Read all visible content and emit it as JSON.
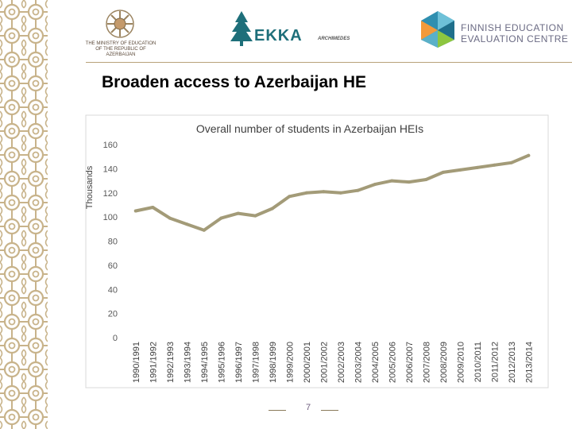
{
  "header": {
    "ministry_name": "THE MINISTRY OF EDUCATION OF THE REPUBLIC OF AZERBAIJAN",
    "ekka_name": "EKKA",
    "ekka_sub": "ARCHIMEDES",
    "finnish_line1": "FINNISH EDUCATION",
    "finnish_line2": "EVALUATION CENTRE"
  },
  "slide": {
    "title": "Broaden access to Azerbaijan HE",
    "page_number": "7"
  },
  "colors": {
    "line": "#a39b78",
    "accent_border": "#c8b38a"
  },
  "chart_data": {
    "type": "line",
    "title": "Overall number of students in Azerbaijan HEIs",
    "ylabel": "Thousands",
    "xlabel": "",
    "ylim": [
      0,
      160
    ],
    "yticks": [
      "0",
      "20",
      "40",
      "60",
      "80",
      "100",
      "120",
      "140",
      "160"
    ],
    "categories": [
      "1990/1991",
      "1991/1992",
      "1992/1993",
      "1993/1994",
      "1994/1995",
      "1995/1996",
      "1996/1997",
      "1997/1998",
      "1998/1999",
      "1999/2000",
      "2000/2001",
      "2001/2002",
      "2002/2003",
      "2003/2004",
      "2004/2005",
      "2005/2006",
      "2006/2007",
      "2007/2008",
      "2008/2009",
      "2009/2010",
      "2010/2011",
      "2011/2012",
      "2012/2013",
      "2013/2014"
    ],
    "series": [
      {
        "values": [
          105,
          108,
          99,
          94,
          89,
          99,
          103,
          101,
          107,
          117,
          120,
          121,
          120,
          122,
          127,
          130,
          129,
          131,
          137,
          139,
          141,
          143,
          145,
          151
        ]
      }
    ],
    "grid": false,
    "legend": "none"
  }
}
